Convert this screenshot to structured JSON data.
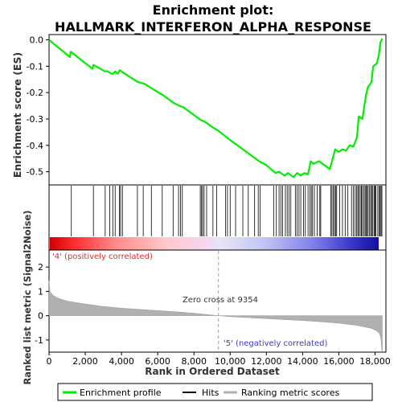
{
  "chart_data": {
    "type": "line",
    "title_line1": "Enrichment plot:",
    "title_line2": "HALLMARK_INTERFERON_ALPHA_RESPONSE",
    "ylabel_es": "Enrichment score (ES)",
    "ylabel_metric": "Ranked list metric (Signal2Noise)",
    "xlabel": "Rank in Ordered Dataset",
    "x_ticks": [
      "0",
      "2,000",
      "4,000",
      "6,000",
      "8,000",
      "10,000",
      "12,000",
      "14,000",
      "16,000",
      "18,000"
    ],
    "x_tick_values": [
      0,
      2000,
      4000,
      6000,
      8000,
      10000,
      12000,
      14000,
      16000,
      18000
    ],
    "xlim": [
      0,
      18600
    ],
    "es_ylim": [
      -0.55,
      0.02
    ],
    "es_ticks": [
      "0.0",
      "-0.1",
      "-0.2",
      "-0.3",
      "-0.4",
      "-0.5"
    ],
    "es_tick_values": [
      0.0,
      -0.1,
      -0.2,
      -0.3,
      -0.4,
      -0.5
    ],
    "metric_ylim": [
      -1.5,
      2.7
    ],
    "metric_ticks": [
      "2",
      "1",
      "0",
      "-1"
    ],
    "metric_tick_values": [
      2,
      1,
      0,
      -1
    ],
    "pos_label": "'4' (positively correlated)",
    "neg_label": "'5' (negatively correlated)",
    "zero_cross_label": "Zero cross at 9354",
    "zero_cross": 9354,
    "max_rank": 18400,
    "es_curve": [
      [
        0,
        0.0
      ],
      [
        1150,
        -0.065
      ],
      [
        1200,
        -0.045
      ],
      [
        2400,
        -0.11
      ],
      [
        2450,
        -0.095
      ],
      [
        3100,
        -0.12
      ],
      [
        3200,
        -0.118
      ],
      [
        3500,
        -0.13
      ],
      [
        3650,
        -0.12
      ],
      [
        3800,
        -0.128
      ],
      [
        3900,
        -0.115
      ],
      [
        4000,
        -0.12
      ],
      [
        4900,
        -0.16
      ],
      [
        5200,
        -0.165
      ],
      [
        5300,
        -0.168
      ],
      [
        5700,
        -0.185
      ],
      [
        6300,
        -0.21
      ],
      [
        6900,
        -0.24
      ],
      [
        7200,
        -0.25
      ],
      [
        7400,
        -0.255
      ],
      [
        8400,
        -0.305
      ],
      [
        8600,
        -0.31
      ],
      [
        9000,
        -0.33
      ],
      [
        9354,
        -0.345
      ],
      [
        10000,
        -0.38
      ],
      [
        11000,
        -0.43
      ],
      [
        11600,
        -0.46
      ],
      [
        12000,
        -0.475
      ],
      [
        12500,
        -0.505
      ],
      [
        12700,
        -0.5
      ],
      [
        13000,
        -0.515
      ],
      [
        13200,
        -0.505
      ],
      [
        13500,
        -0.52
      ],
      [
        13700,
        -0.505
      ],
      [
        13900,
        -0.515
      ],
      [
        14100,
        -0.505
      ],
      [
        14300,
        -0.51
      ],
      [
        14450,
        -0.46
      ],
      [
        14600,
        -0.47
      ],
      [
        14900,
        -0.46
      ],
      [
        15500,
        -0.49
      ],
      [
        15800,
        -0.415
      ],
      [
        16000,
        -0.425
      ],
      [
        16200,
        -0.415
      ],
      [
        16400,
        -0.42
      ],
      [
        16600,
        -0.4
      ],
      [
        16800,
        -0.405
      ],
      [
        17000,
        -0.37
      ],
      [
        17100,
        -0.29
      ],
      [
        17300,
        -0.3
      ],
      [
        17500,
        -0.21
      ],
      [
        17600,
        -0.18
      ],
      [
        17800,
        -0.16
      ],
      [
        17900,
        -0.1
      ],
      [
        18100,
        -0.09
      ],
      [
        18200,
        -0.06
      ],
      [
        18300,
        -0.01
      ],
      [
        18400,
        0.005
      ]
    ],
    "hits": [
      1230,
      2450,
      3100,
      3350,
      3520,
      3650,
      3880,
      3950,
      4050,
      4880,
      5200,
      5650,
      6250,
      6850,
      7150,
      7260,
      7360,
      8350,
      8420,
      8480,
      8560,
      8700,
      9050,
      9250,
      9750,
      9850,
      10000,
      10300,
      10700,
      11000,
      11350,
      11550,
      11650,
      12400,
      12550,
      12700,
      12800,
      12900,
      13050,
      13150,
      13250,
      13350,
      13600,
      13700,
      13800,
      13900,
      14050,
      14150,
      14300,
      14400,
      14480,
      14550,
      14650,
      14800,
      14950,
      15000,
      15550,
      15620,
      15700,
      15760,
      15820,
      15880,
      16050,
      16200,
      16350,
      16500,
      16700,
      16800,
      16900,
      16980,
      17050,
      17100,
      17180,
      17250,
      17300,
      17380,
      17450,
      17500,
      17560,
      17620,
      17700,
      17760,
      17820,
      17880,
      17950,
      18000,
      18050,
      18150,
      18220,
      18280,
      18330,
      18380
    ],
    "metric_curve": [
      [
        0,
        1.45
      ],
      [
        50,
        1.0
      ],
      [
        200,
        0.85
      ],
      [
        500,
        0.72
      ],
      [
        1000,
        0.6
      ],
      [
        2000,
        0.48
      ],
      [
        3000,
        0.38
      ],
      [
        4000,
        0.31
      ],
      [
        5000,
        0.26
      ],
      [
        6000,
        0.21
      ],
      [
        7000,
        0.16
      ],
      [
        8000,
        0.1
      ],
      [
        9354,
        0.0
      ],
      [
        10000,
        -0.04
      ],
      [
        11000,
        -0.08
      ],
      [
        12000,
        -0.12
      ],
      [
        13000,
        -0.16
      ],
      [
        14000,
        -0.2
      ],
      [
        15000,
        -0.25
      ],
      [
        16000,
        -0.31
      ],
      [
        17000,
        -0.4
      ],
      [
        17800,
        -0.52
      ],
      [
        18100,
        -0.63
      ],
      [
        18250,
        -0.75
      ],
      [
        18330,
        -0.95
      ],
      [
        18380,
        -1.45
      ],
      [
        18400,
        -1.5
      ]
    ],
    "legend": [
      "Enrichment profile",
      "Hits",
      "Ranking metric scores"
    ],
    "grid": false,
    "legend_placement": "bottom"
  },
  "colors": {
    "es_line": "#00ee00",
    "hits": "#000000",
    "metric_fill": "#b0b0b0",
    "pos_text": "#e8292b",
    "neg_text": "#3a3ad4",
    "zero_line": "#a0a0a0"
  }
}
